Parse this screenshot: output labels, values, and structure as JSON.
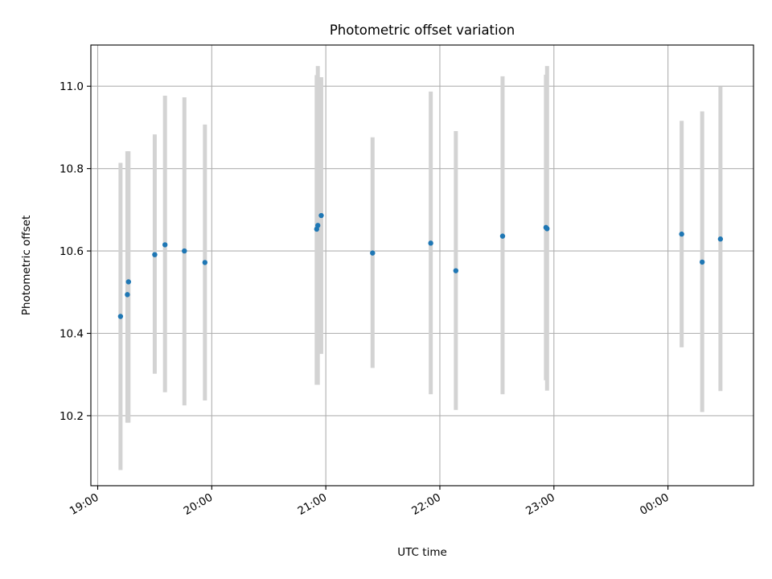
{
  "chart_data": {
    "type": "scatter",
    "title": "Photometric offset variation",
    "xlabel": "UTC time",
    "ylabel": "Photometric offset",
    "x_unit": "hours after 19:00 UTC",
    "xlim": [
      -0.06,
      5.75
    ],
    "ylim": [
      10.03,
      11.1
    ],
    "xticks": [
      0,
      1,
      2,
      3,
      4,
      5
    ],
    "xtick_labels": [
      "19:00",
      "20:00",
      "21:00",
      "22:00",
      "23:00",
      "00:00"
    ],
    "yticks": [
      10.2,
      10.4,
      10.6,
      10.8,
      11.0
    ],
    "ytick_labels": [
      "10.2",
      "10.4",
      "10.6",
      "10.8",
      "11.0"
    ],
    "grid": true,
    "marker_color": "#1f77b4",
    "errorbar_color": "#d3d3d3",
    "points": [
      {
        "x": 0.2,
        "y": 10.441,
        "ylo": 10.068,
        "yhi": 10.814
      },
      {
        "x": 0.26,
        "y": 10.494,
        "ylo": 10.183,
        "yhi": 10.842
      },
      {
        "x": 0.27,
        "y": 10.525,
        "ylo": 10.183,
        "yhi": 10.842
      },
      {
        "x": 0.5,
        "y": 10.591,
        "ylo": 10.302,
        "yhi": 10.883
      },
      {
        "x": 0.59,
        "y": 10.615,
        "ylo": 10.257,
        "yhi": 10.977
      },
      {
        "x": 0.76,
        "y": 10.6,
        "ylo": 10.225,
        "yhi": 10.973
      },
      {
        "x": 0.94,
        "y": 10.572,
        "ylo": 10.237,
        "yhi": 10.907
      },
      {
        "x": 1.92,
        "y": 10.653,
        "ylo": 10.275,
        "yhi": 11.027
      },
      {
        "x": 1.93,
        "y": 10.662,
        "ylo": 10.275,
        "yhi": 11.049
      },
      {
        "x": 1.96,
        "y": 10.686,
        "ylo": 10.35,
        "yhi": 11.022
      },
      {
        "x": 2.41,
        "y": 10.595,
        "ylo": 10.316,
        "yhi": 10.876
      },
      {
        "x": 2.92,
        "y": 10.619,
        "ylo": 10.252,
        "yhi": 10.987
      },
      {
        "x": 3.14,
        "y": 10.552,
        "ylo": 10.214,
        "yhi": 10.891
      },
      {
        "x": 3.55,
        "y": 10.636,
        "ylo": 10.252,
        "yhi": 11.024
      },
      {
        "x": 3.93,
        "y": 10.657,
        "ylo": 10.286,
        "yhi": 11.028
      },
      {
        "x": 3.94,
        "y": 10.654,
        "ylo": 10.261,
        "yhi": 11.049
      },
      {
        "x": 5.12,
        "y": 10.641,
        "ylo": 10.366,
        "yhi": 10.916
      },
      {
        "x": 5.3,
        "y": 10.573,
        "ylo": 10.209,
        "yhi": 10.939
      },
      {
        "x": 5.46,
        "y": 10.629,
        "ylo": 10.26,
        "yhi": 10.999
      }
    ]
  }
}
